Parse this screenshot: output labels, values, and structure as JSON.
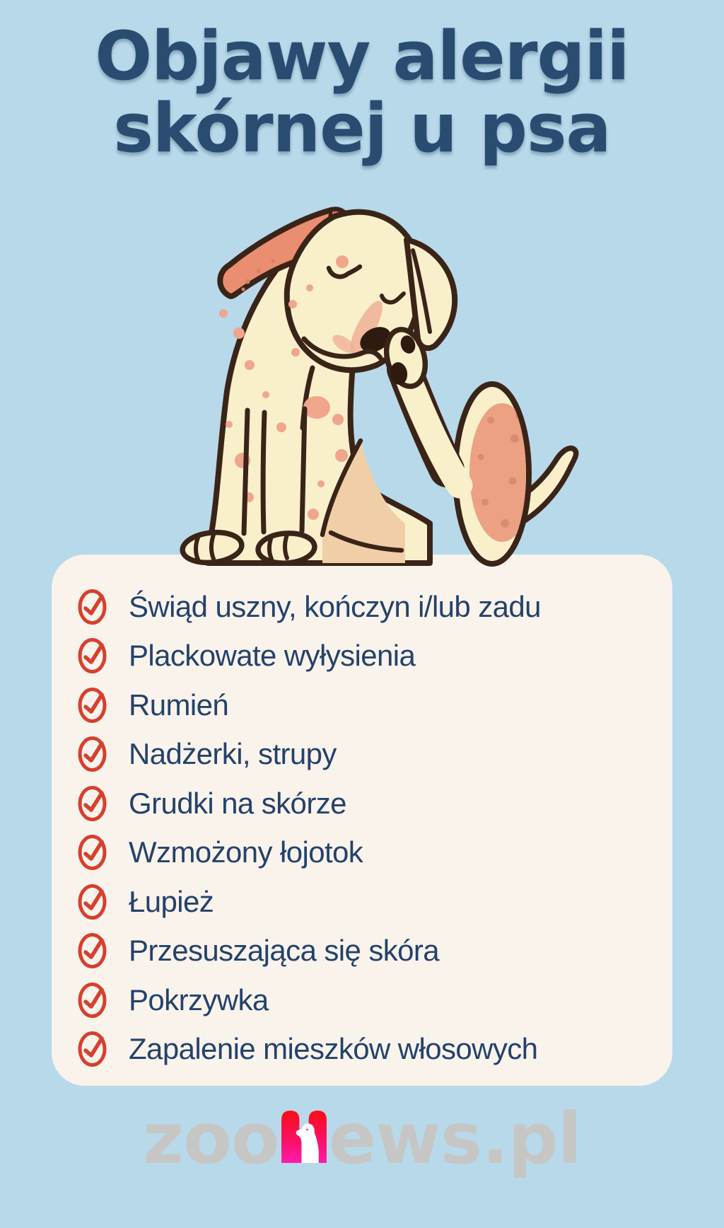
{
  "title": {
    "line1": "Objawy alergii",
    "line2": "skórnej u psa"
  },
  "symptoms": [
    "Świąd uszny, kończyn i/lub zadu",
    "Plackowate wyłysienia",
    "Rumień",
    "Nadżerki, strupy",
    "Grudki na skórze",
    "Wzmożony łojotok",
    "Łupież",
    "Przesuszająca się skóra",
    "Pokrzywka",
    "Zapalenie mieszków włosowych"
  ],
  "illustration": {
    "description": "Cartoon cream dog with pink allergy spots scratching its chin with a hind paw"
  },
  "footer": {
    "logo_part1": "zoo",
    "logo_part2": "ews",
    "logo_part3": ".pl"
  },
  "colors": {
    "background": "#b7d9ea",
    "card": "#f9f3ec",
    "title_text": "#2b4c71",
    "list_text": "#24426b",
    "check_red": "#d6402e",
    "logo_gray": "#c6c7c5",
    "logo_gradient_top": "#f90d15",
    "logo_gradient_bottom": "#fd1bad",
    "dog_cream": "#f9efcb",
    "dog_outline": "#3a2418",
    "dog_spot": "#efa68c",
    "dog_ear_salmon": "#e98e71"
  }
}
